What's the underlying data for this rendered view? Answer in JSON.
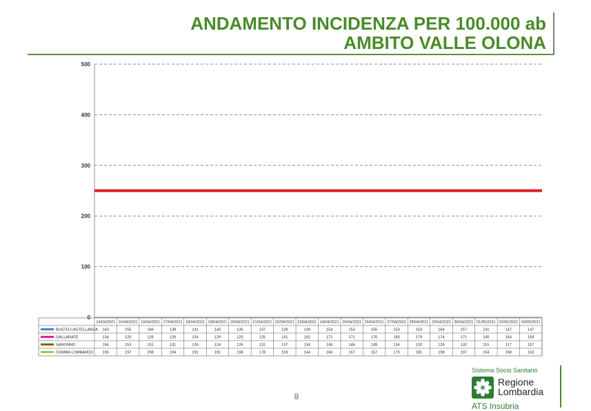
{
  "header": {
    "title_line1": "ANDAMENTO INCIDENZA PER 100.000 ab",
    "title_line2": "AMBITO VALLE OLONA"
  },
  "footer": {
    "page_number": "8",
    "brand_system": "Sistema Socio Sanitario",
    "brand_region_line1": "Regione",
    "brand_region_line2": "Lombardia",
    "brand_ats": "ATS Insubria"
  },
  "colors": {
    "threshold": "#e31a1c",
    "title": "#4a8a2a"
  },
  "chart_data": {
    "type": "line",
    "categories": [
      "14/04/2021",
      "15/04/2021",
      "16/04/2021",
      "17/04/2021",
      "18/04/2021",
      "19/04/2021",
      "20/04/2021",
      "21/04/2021",
      "22/04/2021",
      "23/04/2021",
      "24/04/2021",
      "25/04/2021",
      "26/04/2021",
      "27/04/2021",
      "28/04/2021",
      "29/04/2021",
      "30/04/2021",
      "01/05/2021",
      "02/05/2021",
      "03/05/2021"
    ],
    "ylim": [
      0,
      500
    ],
    "yticks": [
      0,
      100,
      200,
      300,
      400,
      500
    ],
    "grid": true,
    "legend": "table-below",
    "threshold": {
      "value": 250,
      "color": "#e31a1c"
    },
    "series": [
      {
        "name": "BUSTO-CASTELLANZA",
        "color": "#4f81bd",
        "values": [
          163,
          155,
          166,
          138,
          141,
          143,
          136,
          137,
          139,
          139,
          154,
          153,
          155,
          153,
          153,
          164,
          157,
          141,
          147,
          147
        ]
      },
      {
        "name": "GALLARATE",
        "color": "#e020a8",
        "values": [
          134,
          125,
          126,
          126,
          124,
          129,
          125,
          125,
          141,
          152,
          171,
          171,
          170,
          183,
          179,
          174,
          171,
          145,
          154,
          158
        ]
      },
      {
        "name": "SARONNO",
        "color": "#8b5a12",
        "values": [
          156,
          153,
          151,
          131,
          126,
          124,
          126,
          131,
          137,
          134,
          145,
          146,
          149,
          134,
          132,
          129,
          132,
          115,
          117,
          107
        ]
      },
      {
        "name": "SOMMA LOMBARDO",
        "color": "#8fd14f",
        "values": [
          195,
          197,
          208,
          194,
          191,
          191,
          198,
          178,
          159,
          144,
          166,
          167,
          157,
          170,
          181,
          198,
          197,
          164,
          168,
          163
        ]
      }
    ]
  }
}
